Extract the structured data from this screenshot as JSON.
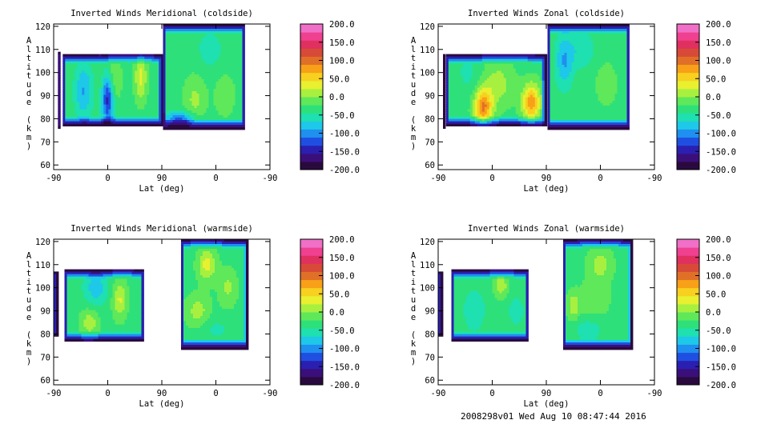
{
  "footer": "2008298v01 Wed Aug 10 08:47:44 2016",
  "colorbar": {
    "labels": [
      "200.0",
      "150.0",
      "100.0",
      "50.0",
      "0.0",
      "-50.0",
      "-100.0",
      "-150.0",
      "-200.0"
    ],
    "range": [
      -200,
      200
    ],
    "colors": [
      "#2a0a3e",
      "#3b0f7a",
      "#2a1fb0",
      "#1f4fe0",
      "#1f8ff0",
      "#1ec8e8",
      "#1ee0b0",
      "#2ee07a",
      "#5ee85a",
      "#a8f040",
      "#e8f030",
      "#f8d020",
      "#f8a018",
      "#e07028",
      "#d84a38",
      "#e03060",
      "#f04090",
      "#f070c8"
    ]
  },
  "chart_data": [
    {
      "type": "heatmap",
      "title": "Inverted Winds Meridional (coldside)",
      "xlabel": "Lat (deg)",
      "ylabel": "Altitude (km)",
      "xticks": [
        "-90",
        "0",
        "90",
        "0",
        "-90"
      ],
      "yticks": [
        "60",
        "70",
        "80",
        "90",
        "100",
        "110",
        "120"
      ],
      "ylim": [
        58,
        121
      ],
      "zlim": [
        -200,
        200
      ],
      "regions": [
        {
          "x": [
            -83,
            -80
          ],
          "y": [
            76,
            109
          ]
        },
        {
          "x": [
            -75,
            90
          ],
          "y": [
            77,
            108
          ]
        },
        {
          "x": [
            92,
            228
          ],
          "y": [
            76,
            121
          ]
        }
      ],
      "features": [
        {
          "x": 5,
          "y": 97,
          "amp": 55,
          "w": 14,
          "h": 10
        },
        {
          "x": 55,
          "y": 98,
          "amp": 60,
          "w": 10,
          "h": 10
        },
        {
          "x": 0,
          "y": 90,
          "amp": -130,
          "w": 10,
          "h": 12
        },
        {
          "x": -40,
          "y": 92,
          "amp": -60,
          "w": 15,
          "h": 12
        },
        {
          "x": 145,
          "y": 88,
          "amp": 35,
          "w": 18,
          "h": 10
        },
        {
          "x": 195,
          "y": 90,
          "amp": 30,
          "w": 15,
          "h": 8
        },
        {
          "x": 170,
          "y": 110,
          "amp": -30,
          "w": 20,
          "h": 8
        },
        {
          "x": 120,
          "y": 80,
          "amp": -90,
          "w": 25,
          "h": 3
        }
      ]
    },
    {
      "type": "heatmap",
      "title": "Inverted Winds Zonal (coldside)",
      "xlabel": "Lat (deg)",
      "ylabel": "Altitude (km)",
      "xticks": [
        "-90",
        "0",
        "90",
        "0",
        "-90"
      ],
      "yticks": [
        "60",
        "70",
        "80",
        "90",
        "100",
        "110",
        "120"
      ],
      "ylim": [
        58,
        121
      ],
      "zlim": [
        -200,
        200
      ],
      "regions": [
        {
          "x": [
            -82,
            -80
          ],
          "y": [
            76,
            108
          ]
        },
        {
          "x": [
            -77,
            88
          ],
          "y": [
            77,
            108
          ]
        },
        {
          "x": [
            92,
            228
          ],
          "y": [
            76,
            121
          ]
        }
      ],
      "features": [
        {
          "x": -15,
          "y": 85,
          "amp": 120,
          "w": 15,
          "h": 8
        },
        {
          "x": 65,
          "y": 87,
          "amp": 110,
          "w": 15,
          "h": 8
        },
        {
          "x": 10,
          "y": 95,
          "amp": 40,
          "w": 25,
          "h": 10
        },
        {
          "x": -40,
          "y": 100,
          "amp": -20,
          "w": 20,
          "h": 10
        },
        {
          "x": 120,
          "y": 105,
          "amp": -60,
          "w": 15,
          "h": 12
        },
        {
          "x": 190,
          "y": 95,
          "amp": 30,
          "w": 15,
          "h": 8
        },
        {
          "x": 150,
          "y": 110,
          "amp": -35,
          "w": 20,
          "h": 8
        }
      ]
    },
    {
      "type": "heatmap",
      "title": "Inverted Winds Meridional (warmside)",
      "xlabel": "Lat (deg)",
      "ylabel": "Altitude (km)",
      "xticks": [
        "-90",
        "0",
        "90",
        "0",
        "-90"
      ],
      "yticks": [
        "60",
        "70",
        "80",
        "90",
        "100",
        "110",
        "120"
      ],
      "ylim": [
        58,
        121
      ],
      "zlim": [
        -200,
        200
      ],
      "regions": [
        {
          "x": [
            -90,
            -84
          ],
          "y": [
            79,
            107
          ]
        },
        {
          "x": [
            -72,
            60
          ],
          "y": [
            77,
            108
          ]
        },
        {
          "x": [
            122,
            232
          ],
          "y": [
            74,
            121
          ]
        }
      ],
      "features": [
        {
          "x": 20,
          "y": 95,
          "amp": 55,
          "w": 12,
          "h": 8
        },
        {
          "x": -30,
          "y": 85,
          "amp": 45,
          "w": 15,
          "h": 6
        },
        {
          "x": -20,
          "y": 100,
          "amp": -50,
          "w": 20,
          "h": 8
        },
        {
          "x": 165,
          "y": 110,
          "amp": 60,
          "w": 15,
          "h": 7
        },
        {
          "x": 150,
          "y": 90,
          "amp": 40,
          "w": 20,
          "h": 7
        },
        {
          "x": 200,
          "y": 100,
          "amp": 35,
          "w": 15,
          "h": 8
        },
        {
          "x": 180,
          "y": 82,
          "amp": -20,
          "w": 25,
          "h": 5
        }
      ]
    },
    {
      "type": "heatmap",
      "title": "Inverted Winds Zonal (warmside)",
      "xlabel": "Lat (deg)",
      "ylabel": "Altitude (km)",
      "xticks": [
        "-90",
        "0",
        "90",
        "0",
        "-90"
      ],
      "yticks": [
        "60",
        "70",
        "80",
        "90",
        "100",
        "110",
        "120"
      ],
      "ylim": [
        58,
        121
      ],
      "zlim": [
        -200,
        200
      ],
      "regions": [
        {
          "x": [
            -90,
            -84
          ],
          "y": [
            79,
            107
          ]
        },
        {
          "x": [
            -68,
            60
          ],
          "y": [
            77,
            108
          ]
        },
        {
          "x": [
            118,
            232
          ],
          "y": [
            74,
            121
          ]
        }
      ],
      "features": [
        {
          "x": 15,
          "y": 101,
          "amp": 45,
          "w": 12,
          "h": 5
        },
        {
          "x": -30,
          "y": 90,
          "amp": -30,
          "w": 20,
          "h": 10
        },
        {
          "x": 40,
          "y": 90,
          "amp": -25,
          "w": 15,
          "h": 8
        },
        {
          "x": 135,
          "y": 92,
          "amp": 45,
          "w": 10,
          "h": 6
        },
        {
          "x": 180,
          "y": 110,
          "amp": 40,
          "w": 20,
          "h": 7
        },
        {
          "x": 170,
          "y": 95,
          "amp": 25,
          "w": 25,
          "h": 8
        },
        {
          "x": 160,
          "y": 82,
          "amp": -30,
          "w": 25,
          "h": 5
        }
      ]
    }
  ]
}
